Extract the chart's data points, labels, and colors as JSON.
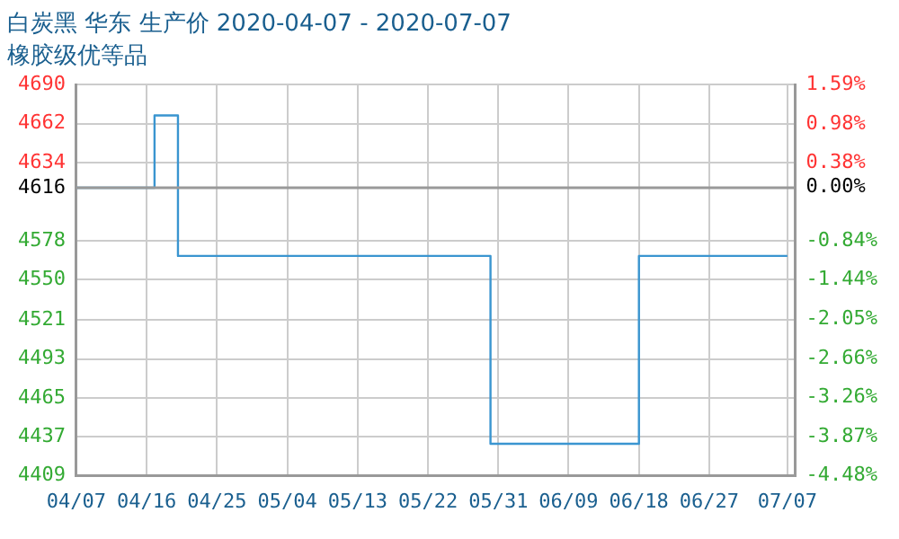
{
  "chart_data": {
    "type": "step",
    "title": "白炭黑 华东 生产价 2020-04-07 - 2020-07-07",
    "subtitle": "橡胶级优等品",
    "x": [
      "2020-04-07",
      "2020-04-15",
      "2020-04-17",
      "2020-04-19",
      "2020-04-20",
      "2020-05-29",
      "2020-05-30",
      "2020-06-17",
      "2020-06-18",
      "2020-07-07"
    ],
    "series": [
      {
        "color": "#3a95d0",
        "values": [
          4616,
          4616,
          4668,
          4668,
          4567,
          4567,
          4432,
          4432,
          4567,
          4567
        ]
      }
    ],
    "xlim": [
      "2020-04-07",
      "2020-07-08"
    ],
    "xticks": [
      {
        "value": "2020-04-07",
        "label": "04/07"
      },
      {
        "value": "2020-04-16",
        "label": "04/16"
      },
      {
        "value": "2020-04-25",
        "label": "04/25"
      },
      {
        "value": "2020-05-04",
        "label": "05/04"
      },
      {
        "value": "2020-05-13",
        "label": "05/13"
      },
      {
        "value": "2020-05-22",
        "label": "05/22"
      },
      {
        "value": "2020-05-31",
        "label": "05/31"
      },
      {
        "value": "2020-06-09",
        "label": "06/09"
      },
      {
        "value": "2020-06-18",
        "label": "06/18"
      },
      {
        "value": "2020-06-27",
        "label": "06/27"
      },
      {
        "value": "2020-07-07",
        "label": "07/07"
      }
    ],
    "ylim": [
      4409,
      4690
    ],
    "yticks": [
      4409,
      4437,
      4465,
      4493,
      4521,
      4550,
      4578,
      4616,
      4634,
      4662,
      4690
    ],
    "y2lim": [
      -4.48,
      1.59
    ],
    "y2ticks": [
      {
        "value": -4.48,
        "label": "-4.48%"
      },
      {
        "value": -3.87,
        "label": "-3.87%"
      },
      {
        "value": -3.26,
        "label": "-3.26%"
      },
      {
        "value": -2.66,
        "label": "-2.66%"
      },
      {
        "value": -2.05,
        "label": "-2.05%"
      },
      {
        "value": -1.44,
        "label": "-1.44%"
      },
      {
        "value": -0.84,
        "label": "-0.84%"
      },
      {
        "value": 0,
        "label": "0.00%"
      },
      {
        "value": 0.38,
        "label": "0.38%"
      },
      {
        "value": 0.98,
        "label": "0.98%"
      },
      {
        "value": 1.59,
        "label": "1.59%"
      }
    ],
    "ref_lines": [
      {
        "axis": "y",
        "value": 4616,
        "color": "#999999"
      }
    ],
    "grid": true,
    "line_style": "solid",
    "marker": "none",
    "legend": false
  }
}
